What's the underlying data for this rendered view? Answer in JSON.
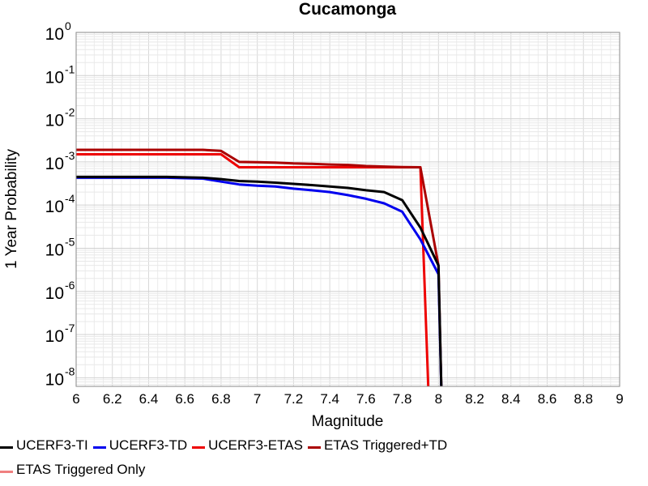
{
  "chart_data": {
    "type": "line",
    "title": "Cucamonga",
    "xlabel": "Magnitude",
    "ylabel": "1 Year Probability",
    "xlim": [
      6,
      9
    ],
    "ylim_exp": [
      -8.2,
      0
    ],
    "y_scale": "log",
    "grid": true,
    "x_ticks": [
      "6",
      "6.2",
      "6.4",
      "6.6",
      "6.8",
      "7",
      "7.2",
      "7.4",
      "7.6",
      "7.8",
      "8",
      "8.2",
      "8.4",
      "8.6",
      "8.8",
      "9"
    ],
    "y_ticks": [
      {
        "base": "10",
        "exp": "0"
      },
      {
        "base": "10",
        "exp": "-1"
      },
      {
        "base": "10",
        "exp": "-2"
      },
      {
        "base": "10",
        "exp": "-3"
      },
      {
        "base": "10",
        "exp": "-4"
      },
      {
        "base": "10",
        "exp": "-5"
      },
      {
        "base": "10",
        "exp": "-6"
      },
      {
        "base": "10",
        "exp": "-7"
      },
      {
        "base": "10",
        "exp": "-8"
      }
    ],
    "legend_position": "bottom",
    "series": [
      {
        "name": "UCERF3-TI",
        "color": "#000000",
        "x": [
          6.0,
          6.1,
          6.2,
          6.3,
          6.4,
          6.5,
          6.6,
          6.7,
          6.8,
          6.9,
          7.0,
          7.1,
          7.2,
          7.3,
          7.4,
          7.5,
          7.6,
          7.7,
          7.8,
          7.9,
          8.0,
          8.02
        ],
        "y": [
          0.00045,
          0.00045,
          0.00045,
          0.00045,
          0.00045,
          0.00045,
          0.00044,
          0.00043,
          0.0004,
          0.00036,
          0.00035,
          0.00033,
          0.00031,
          0.00029,
          0.00027,
          0.00025,
          0.00022,
          0.0002,
          0.00013,
          3e-05,
          4e-06,
          1e-09
        ]
      },
      {
        "name": "UCERF3-TD",
        "color": "#0000ee",
        "x": [
          6.0,
          6.1,
          6.2,
          6.3,
          6.4,
          6.5,
          6.6,
          6.7,
          6.8,
          6.9,
          7.0,
          7.1,
          7.2,
          7.3,
          7.4,
          7.5,
          7.6,
          7.7,
          7.8,
          7.9,
          8.0,
          8.02
        ],
        "y": [
          0.00043,
          0.00043,
          0.00043,
          0.00043,
          0.00043,
          0.00043,
          0.00042,
          0.00041,
          0.00035,
          0.0003,
          0.00028,
          0.00027,
          0.00024,
          0.00022,
          0.0002,
          0.00017,
          0.00014,
          0.00011,
          7e-05,
          1.6e-05,
          2.5e-06,
          1e-09
        ]
      },
      {
        "name": "UCERF3-ETAS",
        "color": "#ee0000",
        "x": [
          6.0,
          6.1,
          6.2,
          6.3,
          6.4,
          6.5,
          6.6,
          6.7,
          6.8,
          6.9,
          7.0,
          7.1,
          7.2,
          7.3,
          7.4,
          7.5,
          7.6,
          7.7,
          7.8,
          7.9,
          7.95
        ],
        "y": [
          0.0015,
          0.0015,
          0.0015,
          0.0015,
          0.0015,
          0.0015,
          0.0015,
          0.0015,
          0.0015,
          0.00075,
          0.00075,
          0.00075,
          0.00075,
          0.00075,
          0.00075,
          0.00075,
          0.00075,
          0.00075,
          0.00075,
          0.00075,
          1e-09
        ]
      },
      {
        "name": "ETAS Triggered+TD",
        "color": "#aa0000",
        "x": [
          6.0,
          6.1,
          6.2,
          6.3,
          6.4,
          6.5,
          6.6,
          6.7,
          6.8,
          6.9,
          7.0,
          7.1,
          7.2,
          7.3,
          7.4,
          7.5,
          7.6,
          7.7,
          7.8,
          7.9,
          8.0,
          8.02
        ],
        "y": [
          0.0019,
          0.0019,
          0.0019,
          0.0019,
          0.0019,
          0.0019,
          0.0019,
          0.0019,
          0.0018,
          0.001,
          0.00098,
          0.00096,
          0.00092,
          0.0009,
          0.00087,
          0.00085,
          0.0008,
          0.00078,
          0.00076,
          0.00075,
          4e-06,
          1e-09
        ]
      },
      {
        "name": "ETAS Triggered Only",
        "color": "#f08080",
        "x": [],
        "y": []
      }
    ]
  }
}
